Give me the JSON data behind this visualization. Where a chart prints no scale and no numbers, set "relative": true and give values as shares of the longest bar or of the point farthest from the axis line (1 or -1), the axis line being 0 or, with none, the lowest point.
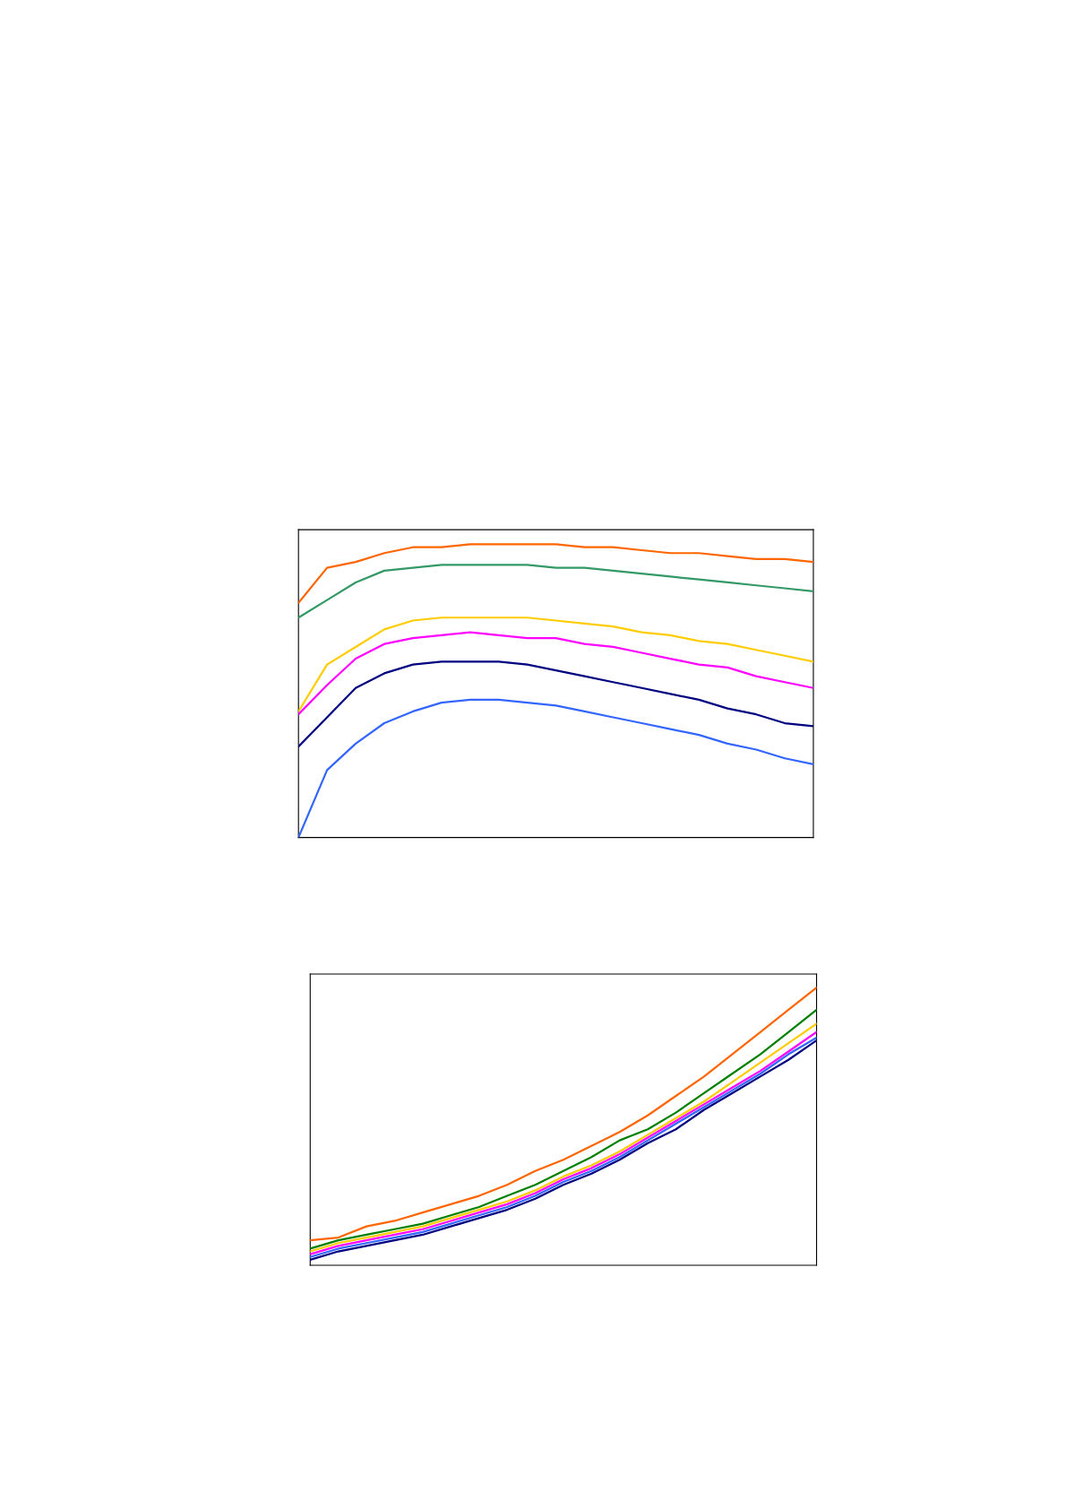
{
  "chart_data": [
    {
      "type": "line",
      "relative": true,
      "categories": [
        null,
        null,
        null,
        null,
        null,
        null,
        null,
        null,
        null,
        null,
        null,
        null,
        null,
        null,
        null,
        null,
        null,
        null,
        null
      ],
      "series": [
        {
          "color": "#3366ff",
          "values": [
            0,
            0.23,
            0.32,
            0.39,
            0.43,
            0.46,
            0.47,
            0.47,
            0.46,
            0.45,
            0.43,
            0.41,
            0.39,
            0.37,
            0.35,
            0.32,
            0.3,
            0.27,
            0.25
          ]
        },
        {
          "color": "#000080",
          "values": [
            0.31,
            0.41,
            0.51,
            0.56,
            0.59,
            0.6,
            0.6,
            0.6,
            0.59,
            0.57,
            0.55,
            0.53,
            0.51,
            0.49,
            0.47,
            0.44,
            0.42,
            0.39,
            0.38
          ]
        },
        {
          "color": "#ff00ff",
          "values": [
            0.42,
            0.52,
            0.61,
            0.66,
            0.68,
            0.69,
            0.7,
            0.69,
            0.68,
            0.68,
            0.66,
            0.65,
            0.63,
            0.61,
            0.59,
            0.58,
            0.55,
            0.53,
            0.51
          ]
        },
        {
          "color": "#ffcc00",
          "values": [
            0.43,
            0.59,
            0.65,
            0.71,
            0.74,
            0.75,
            0.75,
            0.75,
            0.75,
            0.74,
            0.73,
            0.72,
            0.7,
            0.69,
            0.67,
            0.66,
            0.64,
            0.62,
            0.6
          ]
        },
        {
          "color": "#339966",
          "values": [
            0.75,
            0.81,
            0.87,
            0.91,
            0.92,
            0.93,
            0.93,
            0.93,
            0.93,
            0.92,
            0.92,
            0.91,
            0.9,
            0.89,
            0.88,
            0.87,
            0.86,
            0.85,
            0.84
          ]
        },
        {
          "color": "#ff6600",
          "values": [
            0.8,
            0.92,
            0.94,
            0.97,
            0.99,
            0.99,
            1,
            1,
            1,
            1,
            0.99,
            0.99,
            0.98,
            0.97,
            0.97,
            0.96,
            0.95,
            0.95,
            0.94
          ]
        }
      ]
    },
    {
      "type": "line",
      "relative": true,
      "categories": [
        null,
        null,
        null,
        null,
        null,
        null,
        null,
        null,
        null,
        null,
        null,
        null,
        null,
        null,
        null,
        null,
        null,
        null,
        null
      ],
      "series": [
        {
          "color": "#3366ff",
          "values": [
            0.03,
            0.06,
            0.08,
            0.1,
            0.12,
            0.15,
            0.18,
            0.21,
            0.25,
            0.3,
            0.34,
            0.39,
            0.45,
            0.51,
            0.57,
            0.63,
            0.69,
            0.76,
            0.82
          ]
        },
        {
          "color": "#000080",
          "values": [
            0.02,
            0.05,
            0.07,
            0.09,
            0.11,
            0.14,
            0.17,
            0.2,
            0.24,
            0.29,
            0.33,
            0.38,
            0.44,
            0.49,
            0.56,
            0.62,
            0.68,
            0.74,
            0.81
          ]
        },
        {
          "color": "#ff00ff",
          "values": [
            0.04,
            0.07,
            0.09,
            0.11,
            0.13,
            0.16,
            0.19,
            0.22,
            0.26,
            0.31,
            0.35,
            0.4,
            0.46,
            0.52,
            0.58,
            0.64,
            0.7,
            0.77,
            0.84
          ]
        },
        {
          "color": "#ffcc00",
          "values": [
            0.05,
            0.08,
            0.1,
            0.12,
            0.14,
            0.17,
            0.2,
            0.23,
            0.27,
            0.32,
            0.36,
            0.41,
            0.47,
            0.53,
            0.59,
            0.66,
            0.73,
            0.8,
            0.87
          ]
        },
        {
          "color": "#008000",
          "values": [
            0.06,
            0.09,
            0.11,
            0.13,
            0.15,
            0.18,
            0.21,
            0.25,
            0.29,
            0.34,
            0.39,
            0.45,
            0.49,
            0.55,
            0.62,
            0.69,
            0.76,
            0.84,
            0.92
          ]
        },
        {
          "color": "#ff6600",
          "values": [
            0.09,
            0.1,
            0.14,
            0.16,
            0.19,
            0.22,
            0.25,
            0.29,
            0.34,
            0.38,
            0.43,
            0.48,
            0.54,
            0.61,
            0.68,
            0.76,
            0.84,
            0.92,
            1
          ]
        }
      ]
    }
  ]
}
